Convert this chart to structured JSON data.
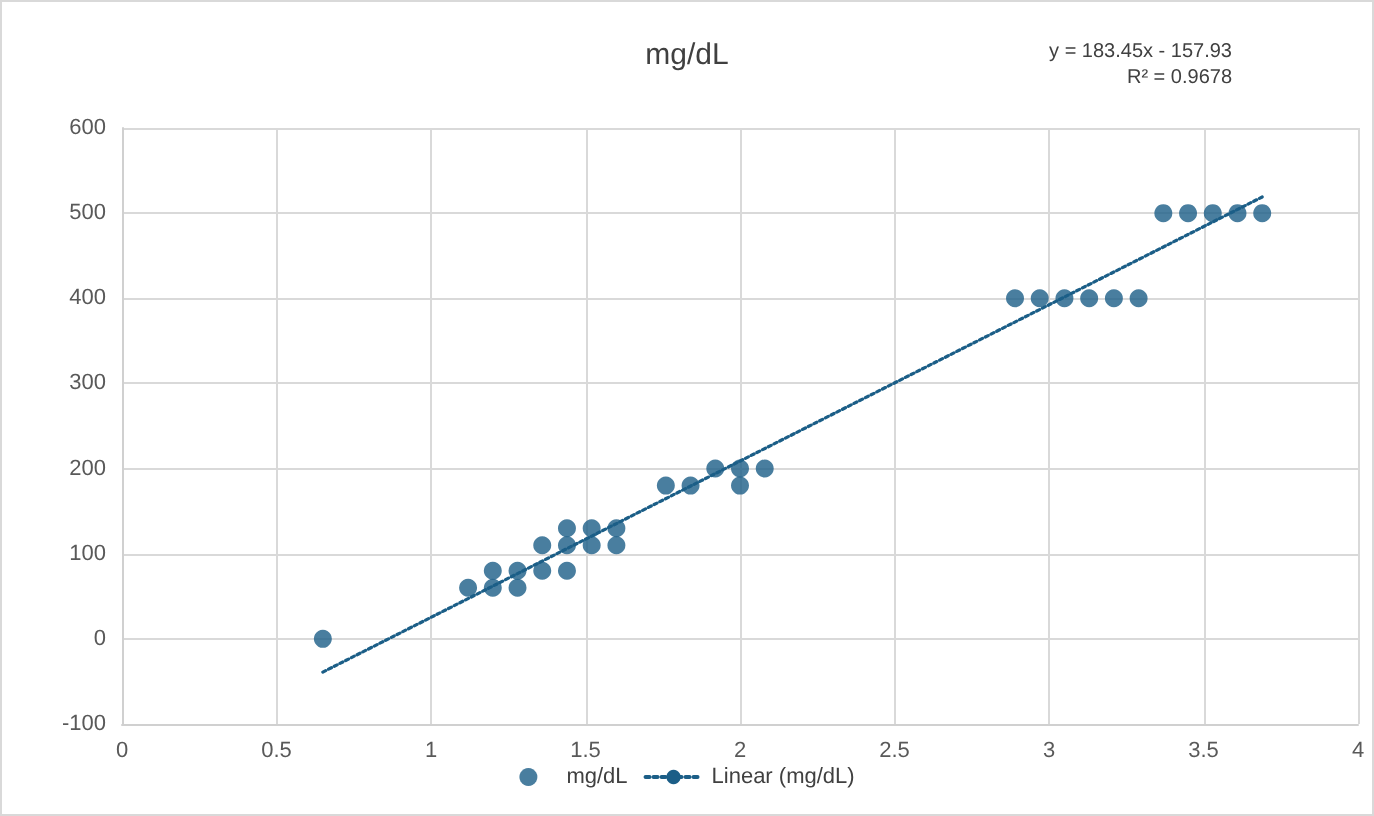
{
  "chart_data": {
    "type": "scatter",
    "title": "mg/dL",
    "annotations": [
      "y = 183.45x - 157.93",
      "R² = 0.9678"
    ],
    "series": [
      {
        "name": "mg/dL",
        "color": "#1b5e87",
        "marker": "circle",
        "x": [
          0.65,
          1.12,
          1.2,
          1.2,
          1.28,
          1.28,
          1.36,
          1.36,
          1.44,
          1.44,
          1.44,
          1.52,
          1.52,
          1.6,
          1.6,
          1.76,
          1.84,
          1.92,
          2.0,
          2.0,
          2.08,
          2.89,
          2.97,
          3.05,
          3.13,
          3.21,
          3.29,
          3.37,
          3.45,
          3.53,
          3.61,
          3.69
        ],
        "values": [
          0,
          60,
          60,
          80,
          60,
          80,
          80,
          110,
          80,
          110,
          130,
          110,
          130,
          110,
          130,
          180,
          180,
          200,
          200,
          180,
          200,
          400,
          400,
          400,
          400,
          400,
          400,
          500,
          500,
          500,
          500,
          500
        ]
      },
      {
        "name": "Linear (mg/dL)",
        "type": "line",
        "color": "#1b5e87",
        "line_style": "dotted",
        "marker": "none",
        "x": [
          0.65,
          3.69
        ],
        "values": [
          -39,
          519
        ]
      }
    ],
    "xlim": [
      0,
      4
    ],
    "xticks": [
      0,
      0.5,
      1,
      1.5,
      2,
      2.5,
      3,
      3.5,
      4
    ],
    "ylim": [
      -100,
      600
    ],
    "yticks": [
      -100,
      0,
      100,
      200,
      300,
      400,
      500,
      600
    ],
    "grid": true,
    "legend": "bottom"
  }
}
